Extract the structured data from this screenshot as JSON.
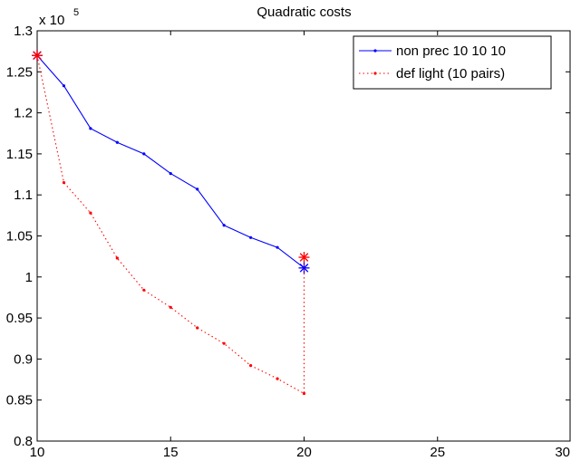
{
  "chart_data": {
    "type": "line",
    "title": "Quadratic costs",
    "xlabel": "",
    "ylabel": "",
    "y_multiplier": {
      "base": "x 10",
      "exponent": "5"
    },
    "xlim": [
      10,
      30
    ],
    "ylim": [
      0.8,
      1.3
    ],
    "x_ticks": [
      10,
      15,
      20,
      25,
      30
    ],
    "y_ticks": [
      0.8,
      0.85,
      0.9,
      0.95,
      1,
      1.05,
      1.1,
      1.15,
      1.2,
      1.25,
      1.3
    ],
    "x_tick_labels": [
      "10",
      "15",
      "20",
      "25",
      "30"
    ],
    "y_tick_labels": [
      "0.8",
      "0.85",
      "0.9",
      "0.95",
      "1",
      "1.05",
      "1.1",
      "1.15",
      "1.2",
      "1.25",
      "1.3"
    ],
    "grid": false,
    "legend_position": "top-right",
    "series": [
      {
        "name": "non prec 10 10 10",
        "color": "#0000ff",
        "line_style": "solid",
        "marker": "dot",
        "x": [
          10,
          11,
          12,
          13,
          14,
          15,
          16,
          17,
          18,
          19,
          20,
          20
        ],
        "y": [
          1.27,
          1.233,
          1.181,
          1.164,
          1.15,
          1.126,
          1.107,
          1.063,
          1.048,
          1.036,
          1.011,
          1.011
        ],
        "star_points": [
          {
            "x": 10,
            "y": 1.27
          },
          {
            "x": 20,
            "y": 1.011
          }
        ]
      },
      {
        "name": "def light (10 pairs)",
        "color": "#ff0000",
        "line_style": "dotted",
        "marker": "dot",
        "x": [
          10,
          11,
          12,
          13,
          14,
          15,
          16,
          17,
          18,
          19,
          20,
          20
        ],
        "y": [
          1.27,
          1.115,
          1.078,
          1.023,
          0.984,
          0.963,
          0.938,
          0.919,
          0.892,
          0.876,
          0.858,
          1.024
        ],
        "star_points": [
          {
            "x": 10,
            "y": 1.27
          },
          {
            "x": 20,
            "y": 1.024
          }
        ]
      }
    ]
  }
}
